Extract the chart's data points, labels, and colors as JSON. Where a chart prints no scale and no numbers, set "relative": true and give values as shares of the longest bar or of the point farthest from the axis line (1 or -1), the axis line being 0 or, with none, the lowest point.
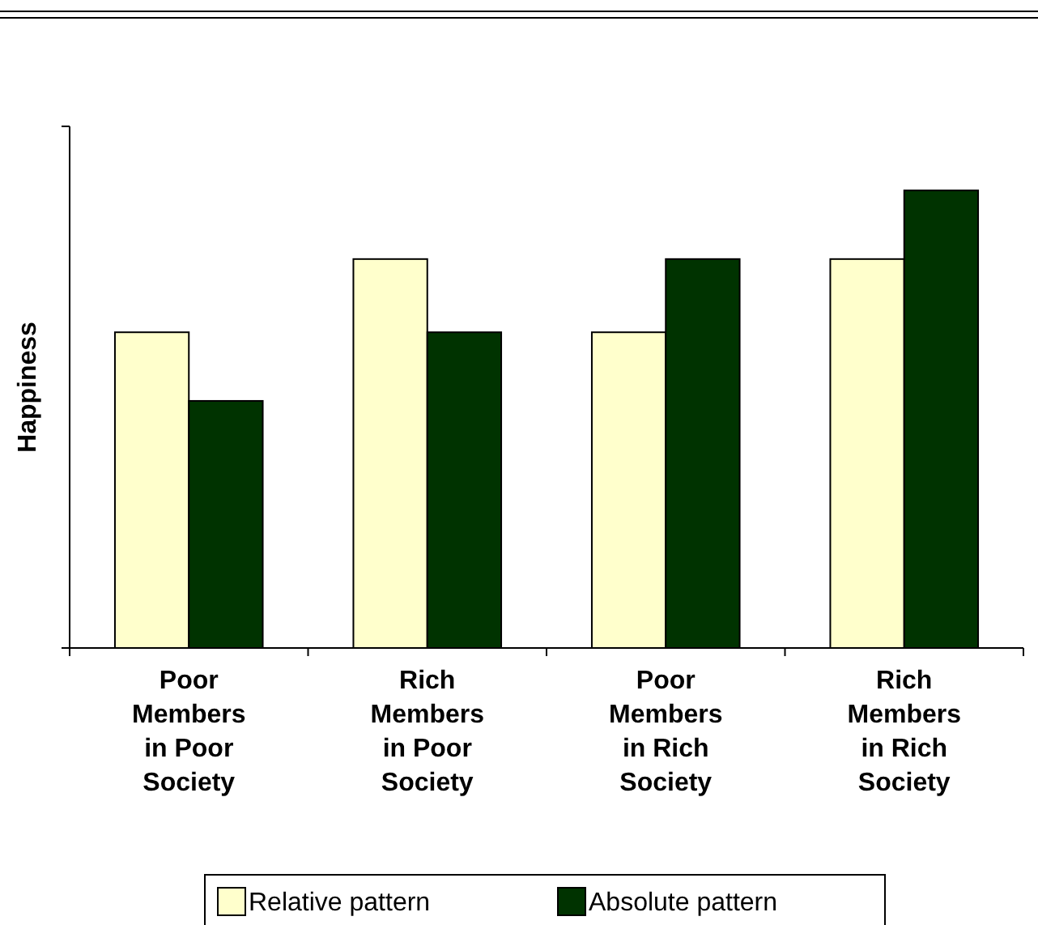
{
  "chart_data": {
    "type": "bar",
    "ylabel": "Happiness",
    "relative": true,
    "legend": "bottom",
    "categories": [
      "Poor Members in Poor Society",
      "Rich Members in Poor Society",
      "Poor Members in Rich Society",
      "Rich Members in Rich Society"
    ],
    "series": [
      {
        "name": "Relative pattern",
        "color": "#ffffcc",
        "values": [
          0.69,
          0.85,
          0.69,
          0.85
        ]
      },
      {
        "name": "Absolute pattern",
        "color": "#003300",
        "values": [
          0.54,
          0.69,
          0.85,
          1
        ]
      }
    ]
  }
}
